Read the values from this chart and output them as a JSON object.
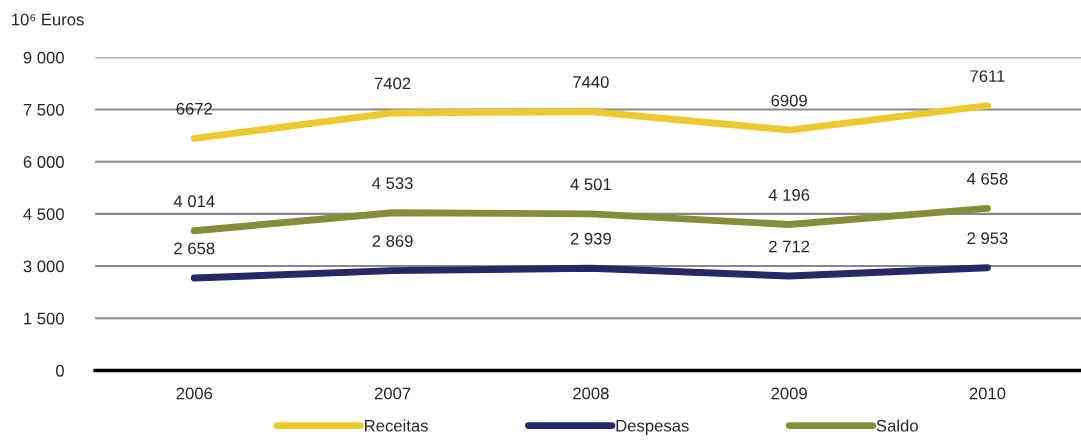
{
  "chart_data": {
    "type": "line",
    "ylabel": "10⁶ Euros",
    "categories": [
      "2006",
      "2007",
      "2008",
      "2009",
      "2010"
    ],
    "series": [
      {
        "name": "Receitas",
        "color": "#ecc92f",
        "values": [
          6672,
          7402,
          7440,
          6909,
          7611
        ],
        "value_labels": [
          "6672",
          "7402",
          "7440",
          "6909",
          "7611"
        ]
      },
      {
        "name": "Despesas",
        "color": "#252a66",
        "values": [
          2658,
          2869,
          2939,
          2712,
          2953
        ],
        "value_labels": [
          "2 658",
          "2 869",
          "2 939",
          "2 712",
          "2 953"
        ]
      },
      {
        "name": "Saldo",
        "color": "#848e38",
        "values": [
          4014,
          4533,
          4501,
          4196,
          4658
        ],
        "value_labels": [
          "4 014",
          "4 533",
          "4 501",
          "4 196",
          "4 658"
        ]
      }
    ],
    "ylim": [
      0,
      9000
    ],
    "yticks": [
      0,
      {
        "value": 1500,
        "label": "1 500"
      },
      {
        "value": 3000,
        "label": "3 000"
      },
      {
        "value": 4500,
        "label": "4 500"
      },
      {
        "value": 6000,
        "label": "6 000"
      },
      {
        "value": 7500,
        "label": "7 500"
      },
      {
        "value": 9000,
        "label": "9 000"
      }
    ],
    "grid": "y",
    "legend": "bottom",
    "marker": "none",
    "line_style": "solid"
  }
}
